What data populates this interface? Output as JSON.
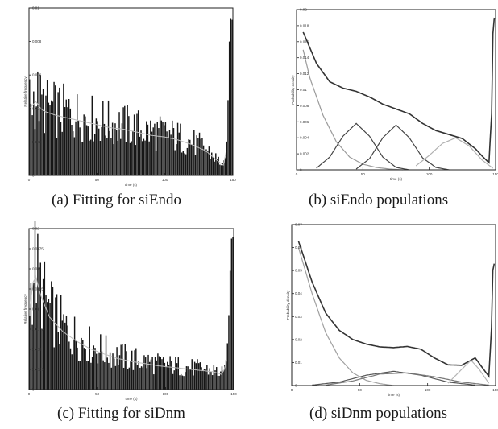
{
  "figure": {
    "captions": {
      "a": "(a) Fitting for siEndo",
      "b": "(b) siEndo populations",
      "c": "(c) Fitting for siDnm",
      "d": "(d) siDnm populations"
    }
  },
  "chart_data": [
    {
      "id": "a",
      "type": "bar",
      "title": "",
      "xlabel": "time (s)",
      "ylabel": "Relative frequency",
      "xlim": [
        0,
        150
      ],
      "ylim": [
        0,
        0.01
      ],
      "xticks": [
        "0",
        "50",
        "100",
        "150"
      ],
      "yticks": [
        "0",
        "0.002",
        "0.004",
        "0.006",
        "0.008",
        "0.01"
      ],
      "bin_width": 1,
      "envelope": {
        "x": [
          1,
          5,
          10,
          20,
          30,
          40,
          50,
          60,
          70,
          80,
          90,
          100,
          110,
          120,
          130,
          138,
          144,
          146,
          147,
          148,
          149
        ],
        "y": [
          0.0044,
          0.0048,
          0.0042,
          0.0039,
          0.0037,
          0.0035,
          0.0033,
          0.0031,
          0.003,
          0.0028,
          0.0026,
          0.0025,
          0.0023,
          0.002,
          0.0016,
          0.001,
          0.0006,
          0.0025,
          0.0065,
          0.0095,
          0.0093
        ]
      }
    },
    {
      "id": "b",
      "type": "line",
      "title": "",
      "xlabel": "time (s)",
      "ylabel": "Probability density",
      "xlim": [
        0,
        150
      ],
      "ylim": [
        0,
        0.02
      ],
      "xticks": [
        "0",
        "50",
        "100",
        "150"
      ],
      "yticks": [
        "0",
        "0.002",
        "0.004",
        "0.006",
        "0.008",
        "0.01",
        "0.012",
        "0.014",
        "0.016",
        "0.018",
        "0.02"
      ],
      "series": [
        {
          "color": "#333333",
          "x": [
            5,
            15,
            25,
            35,
            45,
            55,
            65,
            75,
            85,
            95,
            105,
            115,
            125,
            135,
            140,
            145,
            147,
            148,
            149
          ],
          "y": [
            0.0172,
            0.0133,
            0.011,
            0.0102,
            0.0098,
            0.0091,
            0.0082,
            0.0076,
            0.007,
            0.0058,
            0.0049,
            0.0044,
            0.0039,
            0.0026,
            0.0017,
            0.0009,
            0.007,
            0.017,
            0.019
          ]
        },
        {
          "color": "#9a9a9a",
          "x": [
            5,
            10,
            20,
            30,
            40,
            50,
            60,
            70,
            80
          ],
          "y": [
            0.015,
            0.0115,
            0.0068,
            0.0035,
            0.0016,
            0.0007,
            0.0003,
            0.0001,
            0.0
          ]
        },
        {
          "color": "#444444",
          "x": [
            15,
            25,
            35,
            45,
            55,
            65,
            75,
            85
          ],
          "y": [
            0.0002,
            0.0016,
            0.0042,
            0.0058,
            0.0042,
            0.0016,
            0.0003,
            0.0
          ]
        },
        {
          "color": "#444444",
          "x": [
            45,
            55,
            65,
            75,
            85,
            95,
            105,
            115
          ],
          "y": [
            0.0001,
            0.0014,
            0.004,
            0.0056,
            0.004,
            0.0015,
            0.0003,
            0.0
          ]
        },
        {
          "color": "#b0b0b0",
          "x": [
            90,
            100,
            110,
            120,
            130,
            140,
            148
          ],
          "y": [
            0.0005,
            0.0018,
            0.0033,
            0.004,
            0.003,
            0.0012,
            0.0002
          ]
        }
      ]
    },
    {
      "id": "c",
      "type": "bar",
      "title": "",
      "xlabel": "time (s)",
      "ylabel": "Relative frequency",
      "xlim": [
        0,
        150
      ],
      "ylim": [
        0,
        0.02
      ],
      "xticks": [
        "0",
        "50",
        "100",
        "150"
      ],
      "yticks": [
        "0",
        "0.0025",
        "0.005",
        "0.0075",
        "0.01",
        "0.0125",
        "0.015",
        "0.0175",
        "0.02"
      ],
      "bin_width": 1,
      "envelope": {
        "x": [
          1,
          4,
          8,
          15,
          25,
          35,
          45,
          55,
          65,
          75,
          85,
          95,
          105,
          115,
          125,
          135,
          142,
          145,
          147,
          148,
          149
        ],
        "y": [
          0.0115,
          0.016,
          0.013,
          0.0098,
          0.0078,
          0.0065,
          0.0055,
          0.0048,
          0.0042,
          0.0038,
          0.0035,
          0.0032,
          0.003,
          0.0028,
          0.0026,
          0.0024,
          0.002,
          0.004,
          0.011,
          0.0185,
          0.019
        ]
      }
    },
    {
      "id": "d",
      "type": "line",
      "title": "",
      "xlabel": "time (s)",
      "ylabel": "Probability density",
      "xlim": [
        0,
        150
      ],
      "ylim": [
        0,
        0.07
      ],
      "xticks": [
        "0",
        "50",
        "100",
        "150"
      ],
      "yticks": [
        "0",
        "0.01",
        "0.02",
        "0.03",
        "0.04",
        "0.05",
        "0.06",
        "0.07"
      ],
      "series": [
        {
          "color": "#333333",
          "x": [
            5,
            15,
            25,
            35,
            45,
            55,
            65,
            75,
            85,
            95,
            105,
            115,
            125,
            135,
            140,
            145,
            147,
            148,
            149
          ],
          "y": [
            0.0628,
            0.045,
            0.0315,
            0.024,
            0.02,
            0.018,
            0.0168,
            0.0165,
            0.017,
            0.0158,
            0.012,
            0.009,
            0.0088,
            0.012,
            0.008,
            0.004,
            0.025,
            0.05,
            0.053
          ]
        },
        {
          "color": "#a0a0a0",
          "x": [
            5,
            15,
            25,
            35,
            45,
            55,
            65,
            75
          ],
          "y": [
            0.06,
            0.04,
            0.023,
            0.012,
            0.0055,
            0.0022,
            0.0008,
            0.0
          ]
        },
        {
          "color": "#555555",
          "x": [
            15,
            35,
            55,
            75,
            95,
            115,
            135
          ],
          "y": [
            0.0002,
            0.0015,
            0.0045,
            0.0062,
            0.0045,
            0.0015,
            0.0002
          ]
        },
        {
          "color": "#777777",
          "x": [
            25,
            45,
            65,
            85,
            105,
            125,
            145
          ],
          "y": [
            0.0002,
            0.002,
            0.005,
            0.0055,
            0.0038,
            0.0015,
            0.0002
          ]
        },
        {
          "color": "#b5b5b5",
          "x": [
            115,
            125,
            132,
            138,
            145
          ],
          "y": [
            0.001,
            0.007,
            0.011,
            0.007,
            0.001
          ]
        }
      ]
    }
  ]
}
